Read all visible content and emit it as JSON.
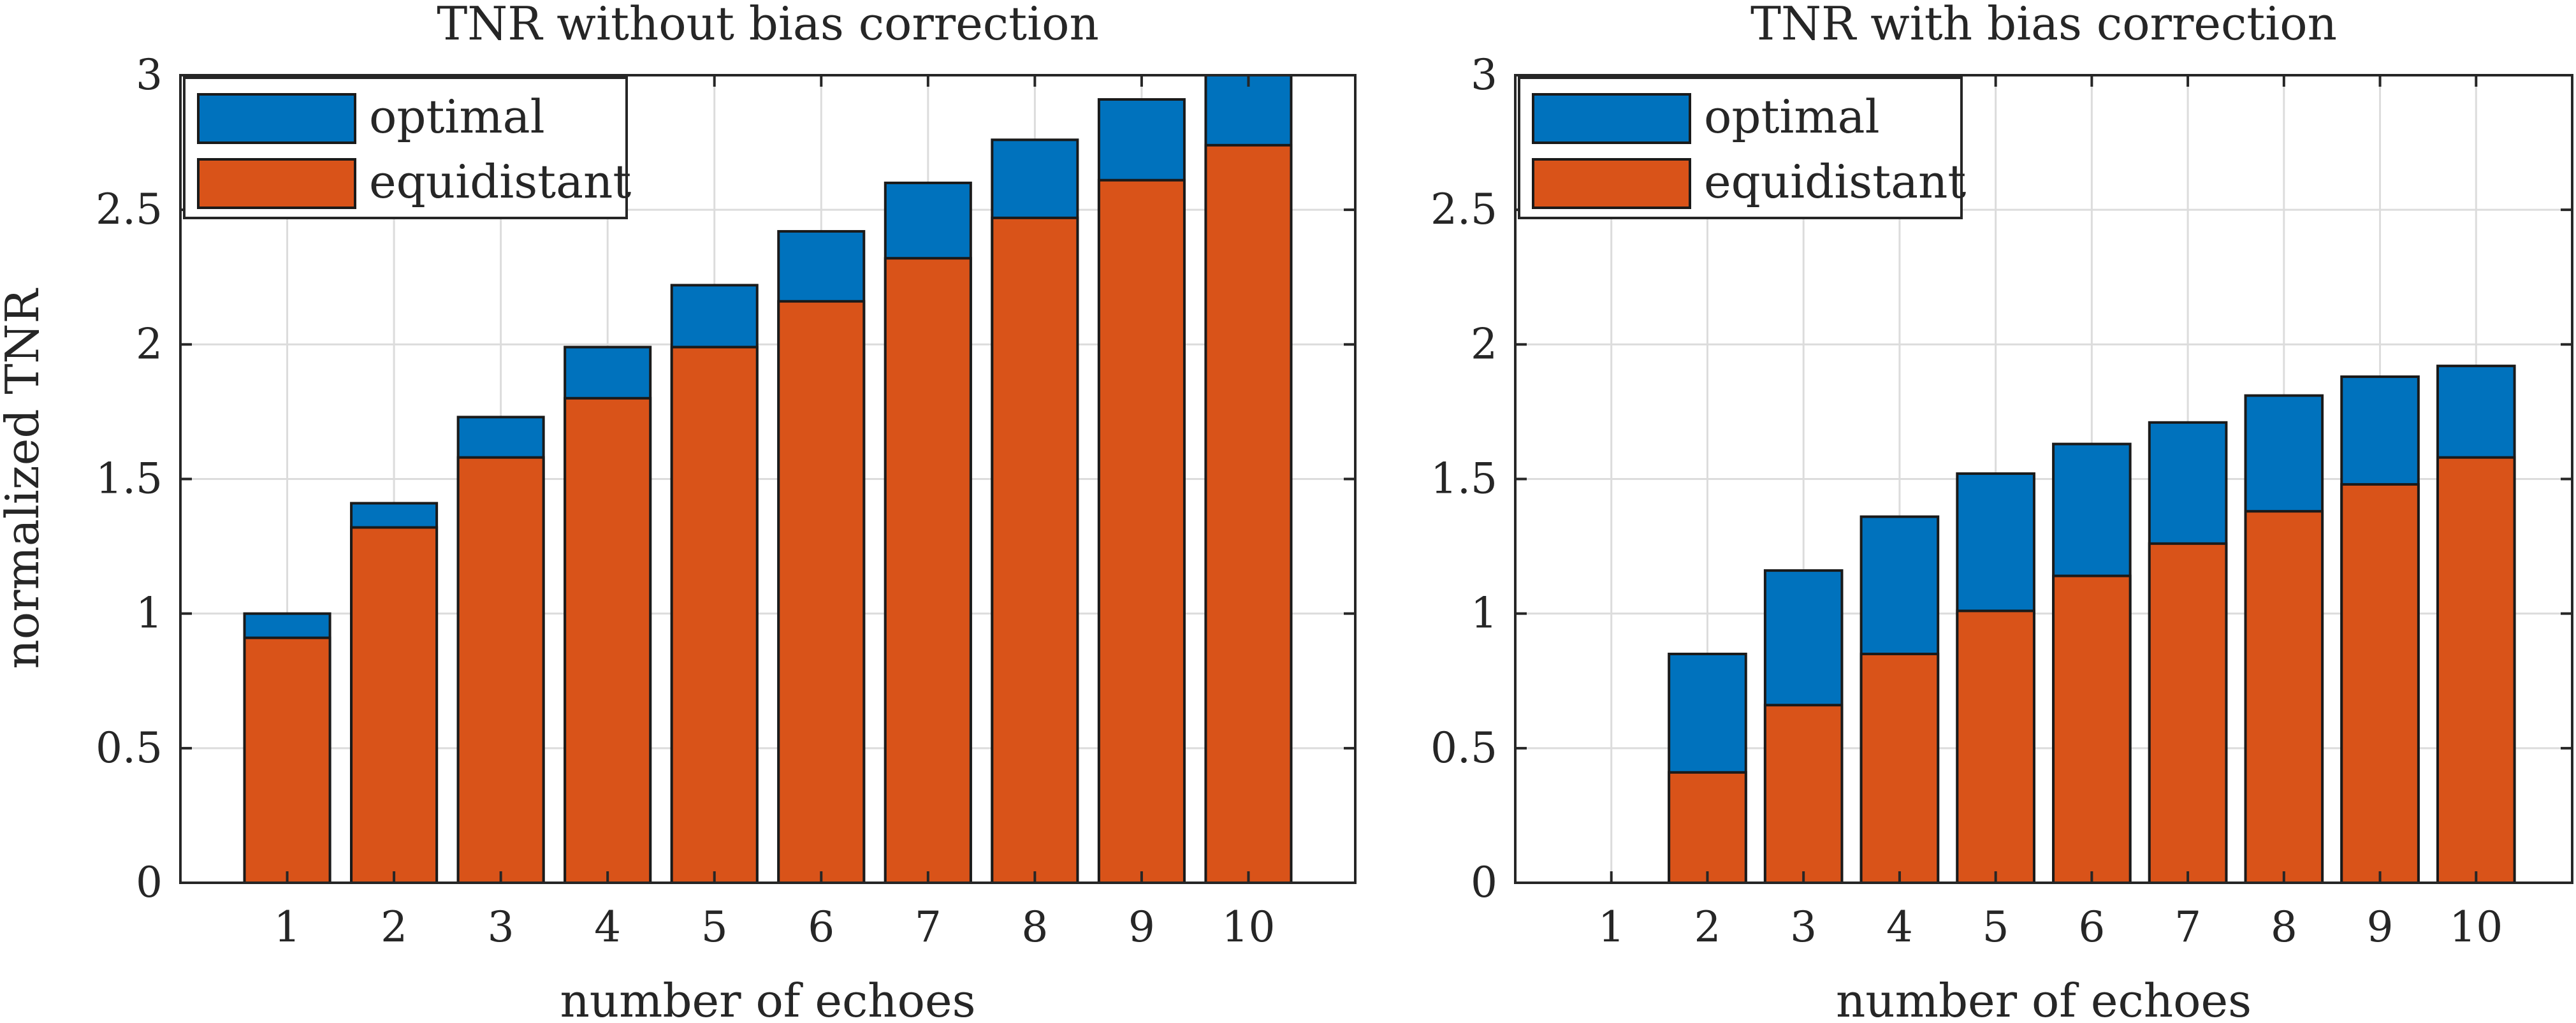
{
  "chart_data": [
    {
      "type": "bar",
      "stacked": "overlay",
      "title": "TNR without bias correction",
      "xlabel": "number of echoes",
      "ylabel": "normalized TNR",
      "categories": [
        "1",
        "2",
        "3",
        "4",
        "5",
        "6",
        "7",
        "8",
        "9",
        "10"
      ],
      "ylim": [
        0,
        3
      ],
      "yticks": [
        "0",
        "0.5",
        "1",
        "1.5",
        "2",
        "2.5",
        "3"
      ],
      "grid": true,
      "legend_position": "top-left",
      "series": [
        {
          "name": "optimal",
          "color": "#0072BD",
          "values": [
            1.0,
            1.41,
            1.73,
            1.99,
            2.22,
            2.42,
            2.6,
            2.76,
            2.91,
            3.0
          ]
        },
        {
          "name": "equidistant",
          "color": "#D95319",
          "values": [
            0.91,
            1.32,
            1.58,
            1.8,
            1.99,
            2.16,
            2.32,
            2.47,
            2.61,
            2.74
          ]
        }
      ]
    },
    {
      "type": "bar",
      "stacked": "overlay",
      "title": "TNR with bias correction",
      "xlabel": "number of echoes",
      "ylabel": "",
      "categories": [
        "1",
        "2",
        "3",
        "4",
        "5",
        "6",
        "7",
        "8",
        "9",
        "10"
      ],
      "ylim": [
        0,
        3
      ],
      "yticks": [
        "0",
        "0.5",
        "1",
        "1.5",
        "2",
        "2.5",
        "3"
      ],
      "grid": true,
      "legend_position": "top-left",
      "series": [
        {
          "name": "optimal",
          "color": "#0072BD",
          "values": [
            0,
            0.85,
            1.16,
            1.36,
            1.52,
            1.63,
            1.71,
            1.81,
            1.88,
            1.92
          ]
        },
        {
          "name": "equidistant",
          "color": "#D95319",
          "values": [
            0,
            0.41,
            0.66,
            0.85,
            1.01,
            1.14,
            1.26,
            1.38,
            1.48,
            1.58
          ]
        }
      ]
    }
  ]
}
